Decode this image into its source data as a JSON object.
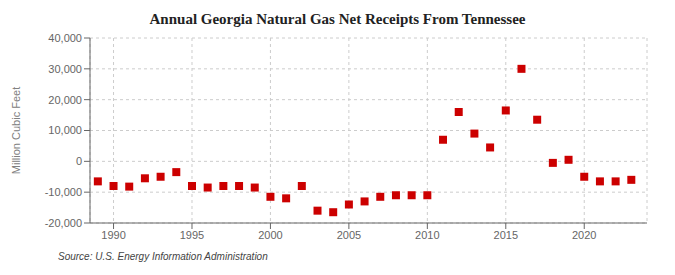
{
  "chart_data": {
    "type": "scatter",
    "title": "Annual Georgia Natural Gas Net Receipts From Tennessee",
    "ylabel": "Million Cubic Feet",
    "annotation": "Source: U.S. Energy Information Administration",
    "color": "#cc0000",
    "marker": "square",
    "grid": true,
    "x": [
      1989,
      1990,
      1991,
      1992,
      1993,
      1994,
      1995,
      1996,
      1997,
      1998,
      1999,
      2000,
      2001,
      2002,
      2003,
      2004,
      2005,
      2006,
      2007,
      2008,
      2009,
      2010,
      2011,
      2012,
      2013,
      2014,
      2015,
      2016,
      2017,
      2018,
      2019,
      2020,
      2021,
      2022,
      2023
    ],
    "values": [
      -6500,
      -8000,
      -8200,
      -5500,
      -5000,
      -3500,
      -8000,
      -8500,
      -8000,
      -8000,
      -8500,
      -11500,
      -12000,
      -8000,
      -16000,
      -16500,
      -14000,
      -13000,
      -11500,
      -11000,
      -11000,
      -11000,
      7000,
      16000,
      9000,
      4500,
      16500,
      30000,
      13500,
      -500,
      500,
      -5000,
      -6500,
      -6500,
      -6000
    ],
    "xlim": [
      1988.5,
      2024
    ],
    "xticks": [
      1990,
      1995,
      2000,
      2005,
      2010,
      2015,
      2020
    ],
    "ylim": [
      -20000,
      40000
    ],
    "yticks": [
      {
        "value": -20000,
        "label": "-20,000"
      },
      {
        "value": -10000,
        "label": "-10,000"
      },
      0,
      {
        "value": 10000,
        "label": "10,000"
      },
      {
        "value": 20000,
        "label": "20,000"
      },
      {
        "value": 30000,
        "label": "30,000"
      },
      {
        "value": 40000,
        "label": "40,000"
      }
    ]
  }
}
